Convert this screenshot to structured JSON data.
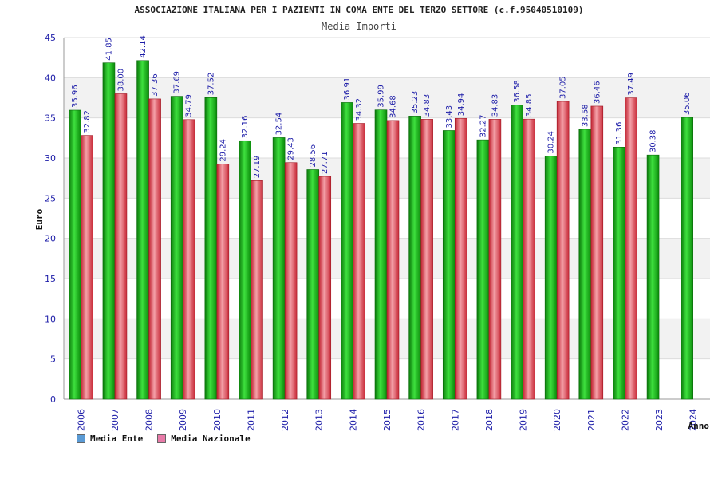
{
  "chart_data": {
    "type": "bar",
    "title": "ASSOCIAZIONE ITALIANA PER I PAZIENTI IN COMA ENTE DEL TERZO SETTORE (c.f.95040510109)",
    "subtitle": "Media Importi",
    "xlabel": "Anno",
    "ylabel": "Euro",
    "ylim": [
      0,
      45
    ],
    "yticks": [
      "0",
      "5",
      "10",
      "15",
      "20",
      "25",
      "30",
      "35",
      "40",
      "45"
    ],
    "grid": "horizontal bands",
    "legend_position": "bottom-left",
    "categories": [
      "2006",
      "2007",
      "2008",
      "2009",
      "2010",
      "2011",
      "2012",
      "2013",
      "2014",
      "2015",
      "2016",
      "2017",
      "2018",
      "2019",
      "2020",
      "2021",
      "2022",
      "2023",
      "2024"
    ],
    "series": [
      {
        "name": "Media Ente",
        "color": "#22bb22",
        "legend_color": "#5b9bd5",
        "values": [
          35.96,
          41.85,
          42.14,
          37.69,
          37.52,
          32.16,
          32.54,
          28.56,
          36.91,
          35.99,
          35.23,
          33.43,
          32.27,
          36.58,
          30.24,
          33.58,
          31.36,
          30.38,
          35.06
        ],
        "labels": [
          "35.96",
          "41.85",
          "42.14",
          "37.69",
          "37.52",
          "32.16",
          "32.54",
          "28.56",
          "36.91",
          "35.99",
          "35.23",
          "33.43",
          "32.27",
          "36.58",
          "30.24",
          "33.58",
          "31.36",
          "30.38",
          "35.06"
        ]
      },
      {
        "name": "Media Nazionale",
        "color": "#e03a4a",
        "legend_color": "#e87aa8",
        "values": [
          32.82,
          38.0,
          37.36,
          34.79,
          29.24,
          27.19,
          29.43,
          27.71,
          34.32,
          34.68,
          34.83,
          34.94,
          34.83,
          34.85,
          37.05,
          36.46,
          37.49,
          null,
          null
        ],
        "labels": [
          "32.82",
          "38.00",
          "37.36",
          "34.79",
          "29.24",
          "27.19",
          "29.43",
          "27.71",
          "34.32",
          "34.68",
          "34.83",
          "34.94",
          "34.83",
          "34.85",
          "37.05",
          "36.46",
          "37.49",
          null,
          null
        ]
      }
    ]
  }
}
